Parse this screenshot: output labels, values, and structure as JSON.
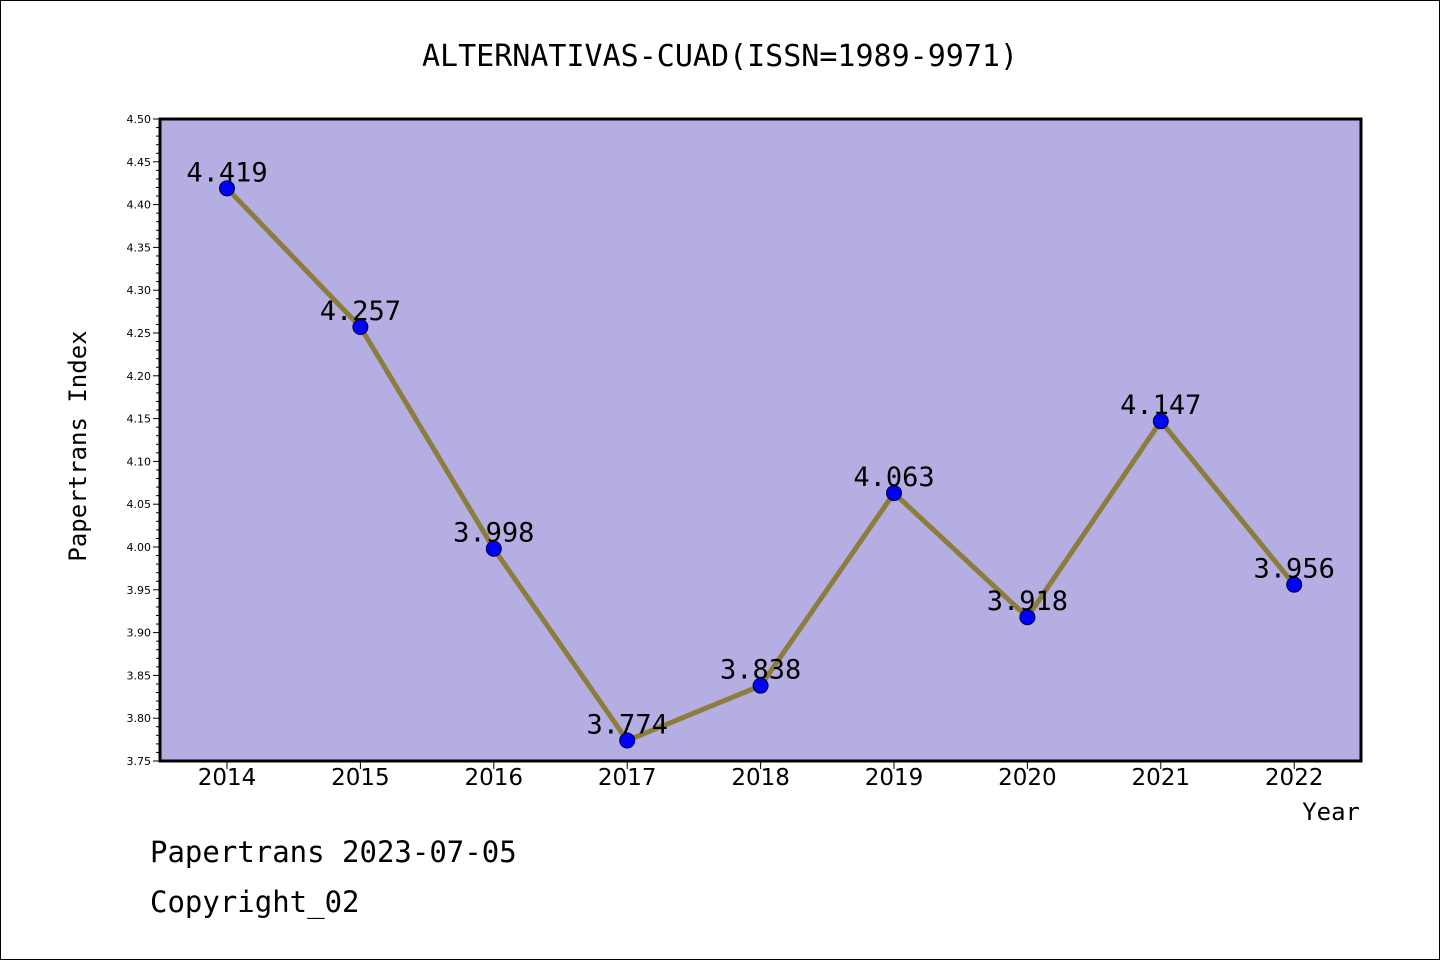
{
  "chart_data": {
    "type": "line",
    "title": "ALTERNATIVAS-CUAD(ISSN=1989-9971)",
    "xlabel": "Year",
    "ylabel": "Papertrans Index",
    "categories": [
      "2014",
      "2015",
      "2016",
      "2017",
      "2018",
      "2019",
      "2020",
      "2021",
      "2022"
    ],
    "series": [
      {
        "values": [
          4.419,
          4.257,
          3.998,
          3.774,
          3.838,
          4.063,
          3.918,
          4.147,
          3.956
        ],
        "data_labels": [
          "4.419",
          "4.257",
          "3.998",
          "3.774",
          "3.838",
          "4.063",
          "3.918",
          "4.147",
          "3.956"
        ],
        "line_color": "#8c7d3c",
        "marker_color": "#0000ff"
      }
    ],
    "ylim": [
      3.75,
      4.5
    ],
    "yticks": [
      "3.75",
      "3.80",
      "3.85",
      "3.90",
      "3.95",
      "4.00",
      "4.05",
      "4.10",
      "4.15",
      "4.20",
      "4.25",
      "4.30",
      "4.35",
      "4.40",
      "4.45",
      "4.50"
    ],
    "plot_background": "#b4aee2",
    "grid": false,
    "legend": "none"
  },
  "footer": {
    "date_line": "Papertrans 2023-07-05",
    "copyright_line": "Copyright_02"
  }
}
